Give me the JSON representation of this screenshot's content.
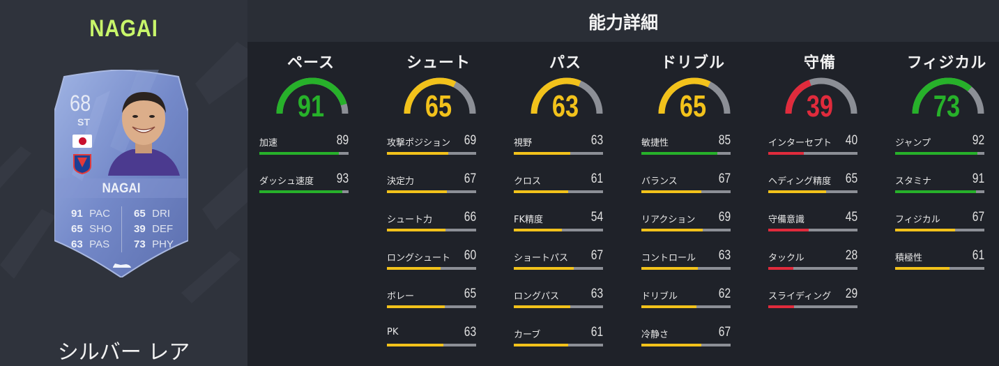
{
  "player": {
    "name": "NAGAI",
    "rarity": "シルバー レア",
    "card": {
      "overall": "68",
      "position": "ST",
      "name": "NAGAI",
      "stats_left": [
        {
          "value": "91",
          "label": "PAC"
        },
        {
          "value": "65",
          "label": "SHO"
        },
        {
          "value": "63",
          "label": "PAS"
        }
      ],
      "stats_right": [
        {
          "value": "65",
          "label": "DRI"
        },
        {
          "value": "39",
          "label": "DEF"
        },
        {
          "value": "73",
          "label": "PHY"
        }
      ]
    }
  },
  "header": {
    "title": "能力詳細"
  },
  "colors": {
    "green": "#27b12a",
    "yellow": "#f2c21b",
    "red": "#e02b3c",
    "track": "#8c8f96",
    "name_accent": "#c8f56a"
  },
  "categories": [
    {
      "name": "ペース",
      "value": 91,
      "attributes": [
        {
          "label": "加速",
          "value": 89
        },
        {
          "label": "ダッシュ速度",
          "value": 93
        }
      ]
    },
    {
      "name": "シュート",
      "value": 65,
      "attributes": [
        {
          "label": "攻撃ポジション",
          "value": 69
        },
        {
          "label": "決定力",
          "value": 67
        },
        {
          "label": "シュート力",
          "value": 66
        },
        {
          "label": "ロングシュート",
          "value": 60
        },
        {
          "label": "ボレー",
          "value": 65
        },
        {
          "label": "PK",
          "value": 63
        }
      ]
    },
    {
      "name": "パス",
      "value": 63,
      "attributes": [
        {
          "label": "視野",
          "value": 63
        },
        {
          "label": "クロス",
          "value": 61
        },
        {
          "label": "FK精度",
          "value": 54
        },
        {
          "label": "ショートパス",
          "value": 67
        },
        {
          "label": "ロングパス",
          "value": 63
        },
        {
          "label": "カーブ",
          "value": 61
        }
      ]
    },
    {
      "name": "ドリブル",
      "value": 65,
      "attributes": [
        {
          "label": "敏捷性",
          "value": 85
        },
        {
          "label": "バランス",
          "value": 67
        },
        {
          "label": "リアクション",
          "value": 69
        },
        {
          "label": "コントロール",
          "value": 63
        },
        {
          "label": "ドリブル",
          "value": 62
        },
        {
          "label": "冷静さ",
          "value": 67
        }
      ]
    },
    {
      "name": "守備",
      "value": 39,
      "attributes": [
        {
          "label": "インターセプト",
          "value": 40
        },
        {
          "label": "ヘディング精度",
          "value": 65
        },
        {
          "label": "守備意識",
          "value": 45
        },
        {
          "label": "タックル",
          "value": 28
        },
        {
          "label": "スライディング",
          "value": 29
        }
      ]
    },
    {
      "name": "フィジカル",
      "value": 73,
      "attributes": [
        {
          "label": "ジャンプ",
          "value": 92
        },
        {
          "label": "スタミナ",
          "value": 91
        },
        {
          "label": "フィジカル",
          "value": 67
        },
        {
          "label": "積極性",
          "value": 61
        }
      ]
    }
  ]
}
